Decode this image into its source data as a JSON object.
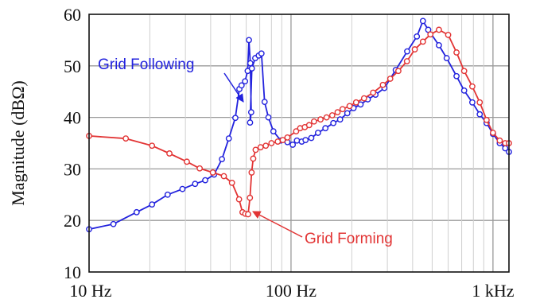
{
  "chart_data": {
    "type": "line",
    "ylabel": "Magnitude (dBΩ)",
    "x_scale": "log",
    "xlim": [
      10,
      1200
    ],
    "ylim": [
      10,
      60
    ],
    "x_ticks": [
      {
        "value": 10,
        "label": "10 Hz"
      },
      {
        "value": 100,
        "label": "100 Hz"
      },
      {
        "value": 1000,
        "label": "1 kHz"
      }
    ],
    "y_ticks": [
      10,
      20,
      30,
      40,
      50,
      60
    ],
    "grid": true,
    "series": [
      {
        "name": "Grid Following",
        "color": "#2222dd",
        "x": [
          10,
          13.2,
          17.2,
          20.5,
          24.5,
          29,
          33.5,
          37.6,
          41.6,
          45.5,
          49.2,
          53,
          55.5,
          56.9,
          59.2,
          61,
          61.9,
          62.9,
          63.5,
          62.7,
          64,
          66.5,
          69.2,
          71.4,
          74,
          77.3,
          81.8,
          89,
          96,
          102,
          107,
          113,
          118,
          126,
          136,
          148,
          162,
          175,
          190,
          204,
          221,
          240,
          262,
          290,
          330,
          376,
          420,
          450,
          478,
          540,
          590,
          660,
          720,
          790,
          860,
          930,
          1000,
          1080,
          1150,
          1200
        ],
        "y": [
          18.3,
          19.3,
          21.6,
          23.1,
          25.0,
          26.1,
          27.1,
          27.8,
          28.9,
          31.9,
          35.9,
          39.9,
          45.5,
          46.2,
          47.0,
          49.0,
          55.0,
          50.5,
          41.0,
          39.0,
          49.5,
          51.5,
          52.0,
          52.4,
          43.0,
          40.0,
          37.3,
          35.5,
          35.2,
          34.7,
          35.5,
          35.3,
          35.6,
          36.0,
          37.0,
          37.9,
          38.9,
          39.6,
          40.8,
          41.8,
          42.5,
          43.5,
          44.4,
          45.7,
          49.2,
          52.8,
          55.7,
          58.7,
          57.0,
          54.0,
          51.5,
          48.0,
          45.2,
          42.9,
          40.6,
          38.9,
          36.8,
          35.0,
          34.0,
          33.3
        ]
      },
      {
        "name": "Grid Forming",
        "color": "#e23434",
        "x": [
          10,
          15.2,
          20.5,
          25,
          30.5,
          35.3,
          41,
          46.5,
          51,
          55.3,
          57.5,
          59.4,
          61.3,
          62.6,
          63.8,
          65,
          66.8,
          70.7,
          75,
          80,
          86,
          91,
          96,
          106,
          111,
          117,
          123,
          130,
          140,
          150,
          160,
          170,
          180,
          195,
          210,
          230,
          255,
          285,
          310,
          340,
          375,
          410,
          450,
          490,
          540,
          600,
          660,
          720,
          790,
          860,
          930,
          1000,
          1080,
          1150,
          1200
        ],
        "y": [
          36.4,
          35.9,
          34.5,
          33.0,
          31.4,
          30.1,
          29.3,
          28.6,
          27.3,
          24.1,
          21.6,
          21.3,
          21.2,
          24.4,
          29.3,
          32.0,
          33.7,
          34.2,
          34.5,
          35.0,
          35.3,
          35.6,
          36.1,
          37.3,
          37.9,
          38.1,
          38.5,
          39.2,
          39.6,
          40.0,
          40.4,
          41.0,
          41.6,
          42.2,
          42.9,
          43.7,
          44.8,
          46.3,
          47.5,
          49.0,
          50.9,
          53.2,
          54.7,
          56.1,
          57.0,
          56.0,
          52.6,
          49.0,
          46.0,
          42.9,
          39.5,
          37.0,
          35.5,
          35.0,
          35.0
        ]
      }
    ],
    "annotations": [
      {
        "text": "Grid Following",
        "color": "#2222dd",
        "target_series": 0
      },
      {
        "text": "Grid Forming",
        "color": "#e23434",
        "target_series": 1
      }
    ]
  }
}
